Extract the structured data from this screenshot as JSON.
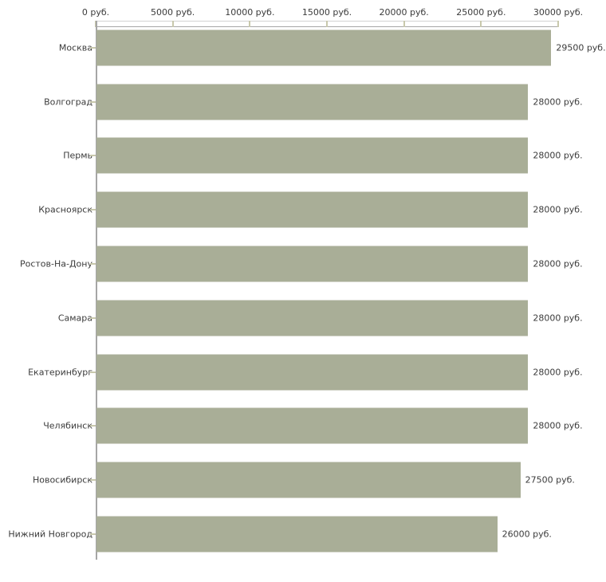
{
  "chart": {
    "background": "#ffffff",
    "bar_color": "#a9ae97",
    "tick_color": "#c8c8ac",
    "axis_line_color": "#a6a6a6",
    "light_line_color": "#d2d2d2",
    "text_color": "#3b3b3b"
  },
  "chart_data": {
    "type": "bar",
    "orientation": "horizontal",
    "title": "",
    "xlabel": "",
    "ylabel": "",
    "unit": "руб.",
    "xlim": [
      0,
      30000
    ],
    "grid": false,
    "legend_position": "none",
    "x_axis": {
      "tick_values": [
        0,
        5000,
        10000,
        15000,
        20000,
        25000,
        30000
      ],
      "tick_labels": [
        "0 руб.",
        "5000 руб.",
        "10000 руб.",
        "15000 руб.",
        "20000 руб.",
        "25000 руб.",
        "30000 руб."
      ]
    },
    "categories": [
      "Москва",
      "Волгоград",
      "Пермь",
      "Красноярск",
      "Ростов-На-Дону",
      "Самара",
      "Екатеринбург",
      "Челябинск",
      "Новосибирск",
      "Нижний Новгород"
    ],
    "values": [
      29500,
      28000,
      28000,
      28000,
      28000,
      28000,
      28000,
      28000,
      27500,
      26000
    ],
    "value_labels": [
      "29500 руб.",
      "28000 руб.",
      "28000 руб.",
      "28000 руб.",
      "28000 руб.",
      "28000 руб.",
      "28000 руб.",
      "28000 руб.",
      "27500 руб.",
      "26000 руб."
    ]
  }
}
